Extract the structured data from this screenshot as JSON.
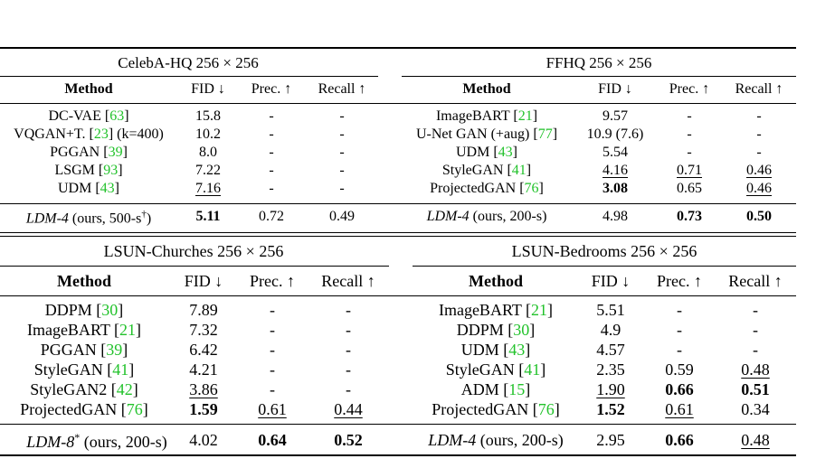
{
  "tables": {
    "celeba": {
      "title": "CelebA-HQ 256 × 256",
      "headers": {
        "method": "Method",
        "fid": "FID ↓",
        "prec": "Prec. ↑",
        "recall": "Recall ↑"
      },
      "rows": [
        {
          "name": "DC-VAE [",
          "cite": "63",
          "suffix": "]",
          "fid": "15.8",
          "prec": "-",
          "recall": "-"
        },
        {
          "name": "VQGAN+T. [",
          "cite": "23",
          "suffix": "] (k=400)",
          "fid": "10.2",
          "prec": "-",
          "recall": "-"
        },
        {
          "name": "PGGAN [",
          "cite": "39",
          "suffix": "]",
          "fid": "8.0",
          "prec": "-",
          "recall": "-"
        },
        {
          "name": "LSGM [",
          "cite": "93",
          "suffix": "]",
          "fid": "7.22",
          "prec": "-",
          "recall": "-"
        },
        {
          "name": "UDM [",
          "cite": "43",
          "suffix": "]",
          "fid": "7.16",
          "prec": "-",
          "recall": "-"
        }
      ],
      "ours": {
        "name": "LDM-4",
        "suffix": " (ours, 500-s",
        "sup": "†",
        "close": ")",
        "fid": "5.11",
        "prec": "0.72",
        "recall": "0.49"
      }
    },
    "ffhq": {
      "title": "FFHQ 256 × 256",
      "headers": {
        "method": "Method",
        "fid": "FID ↓",
        "prec": "Prec. ↑",
        "recall": "Recall ↑"
      },
      "rows": [
        {
          "name": "ImageBART [",
          "cite": "21",
          "suffix": "]",
          "fid": "9.57",
          "prec": "-",
          "recall": "-"
        },
        {
          "name": "U-Net GAN (+aug) [",
          "cite": "77",
          "suffix": "]",
          "fid": "10.9 (7.6)",
          "prec": "-",
          "recall": "-"
        },
        {
          "name": "UDM [",
          "cite": "43",
          "suffix": "]",
          "fid": "5.54",
          "prec": "-",
          "recall": "-"
        },
        {
          "name": "StyleGAN [",
          "cite": "41",
          "suffix": "]",
          "fid": "4.16",
          "prec": "0.71",
          "recall": "0.46"
        },
        {
          "name": "ProjectedGAN [",
          "cite": "76",
          "suffix": "]",
          "fid": "3.08",
          "prec": "0.65",
          "recall": "0.46"
        }
      ],
      "ours": {
        "name": "LDM-4",
        "suffix": " (ours, 200-s)",
        "fid": "4.98",
        "prec": "0.73",
        "recall": "0.50"
      }
    },
    "churches": {
      "title": "LSUN-Churches 256 × 256",
      "headers": {
        "method": "Method",
        "fid": "FID ↓",
        "prec": "Prec. ↑",
        "recall": "Recall ↑"
      },
      "rows": [
        {
          "name": "DDPM [",
          "cite": "30",
          "suffix": "]",
          "fid": "7.89",
          "prec": "-",
          "recall": "-"
        },
        {
          "name": "ImageBART [",
          "cite": "21",
          "suffix": "]",
          "fid": "7.32",
          "prec": "-",
          "recall": "-"
        },
        {
          "name": "PGGAN [",
          "cite": "39",
          "suffix": "]",
          "fid": "6.42",
          "prec": "-",
          "recall": "-"
        },
        {
          "name": "StyleGAN [",
          "cite": "41",
          "suffix": "]",
          "fid": "4.21",
          "prec": "-",
          "recall": "-"
        },
        {
          "name": "StyleGAN2 [",
          "cite": "42",
          "suffix": "]",
          "fid": "3.86",
          "prec": "-",
          "recall": "-"
        },
        {
          "name": "ProjectedGAN [",
          "cite": "76",
          "suffix": "]",
          "fid": "1.59",
          "prec": "0.61",
          "recall": "0.44"
        }
      ],
      "ours": {
        "name": "LDM-8",
        "sup": "*",
        "suffix": " (ours, 200-s)",
        "fid": "4.02",
        "prec": "0.64",
        "recall": "0.52"
      }
    },
    "bedrooms": {
      "title": "LSUN-Bedrooms 256 × 256",
      "headers": {
        "method": "Method",
        "fid": "FID ↓",
        "prec": "Prec. ↑",
        "recall": "Recall ↑"
      },
      "rows": [
        {
          "name": "ImageBART [",
          "cite": "21",
          "suffix": "]",
          "fid": "5.51",
          "prec": "-",
          "recall": "-"
        },
        {
          "name": "DDPM [",
          "cite": "30",
          "suffix": "]",
          "fid": "4.9",
          "prec": "-",
          "recall": "-"
        },
        {
          "name": "UDM [",
          "cite": "43",
          "suffix": "]",
          "fid": "4.57",
          "prec": "-",
          "recall": "-"
        },
        {
          "name": "StyleGAN [",
          "cite": "41",
          "suffix": "]",
          "fid": "2.35",
          "prec": "0.59",
          "recall": "0.48"
        },
        {
          "name": "ADM [",
          "cite": "15",
          "suffix": "]",
          "fid": "1.90",
          "prec": "0.66",
          "recall": "0.51"
        },
        {
          "name": "ProjectedGAN [",
          "cite": "76",
          "suffix": "]",
          "fid": "1.52",
          "prec": "0.61",
          "recall": "0.34"
        }
      ],
      "ours": {
        "name": "LDM-4",
        "suffix": " (ours, 200-s)",
        "fid": "2.95",
        "prec": "0.66",
        "recall": "0.48"
      }
    }
  }
}
